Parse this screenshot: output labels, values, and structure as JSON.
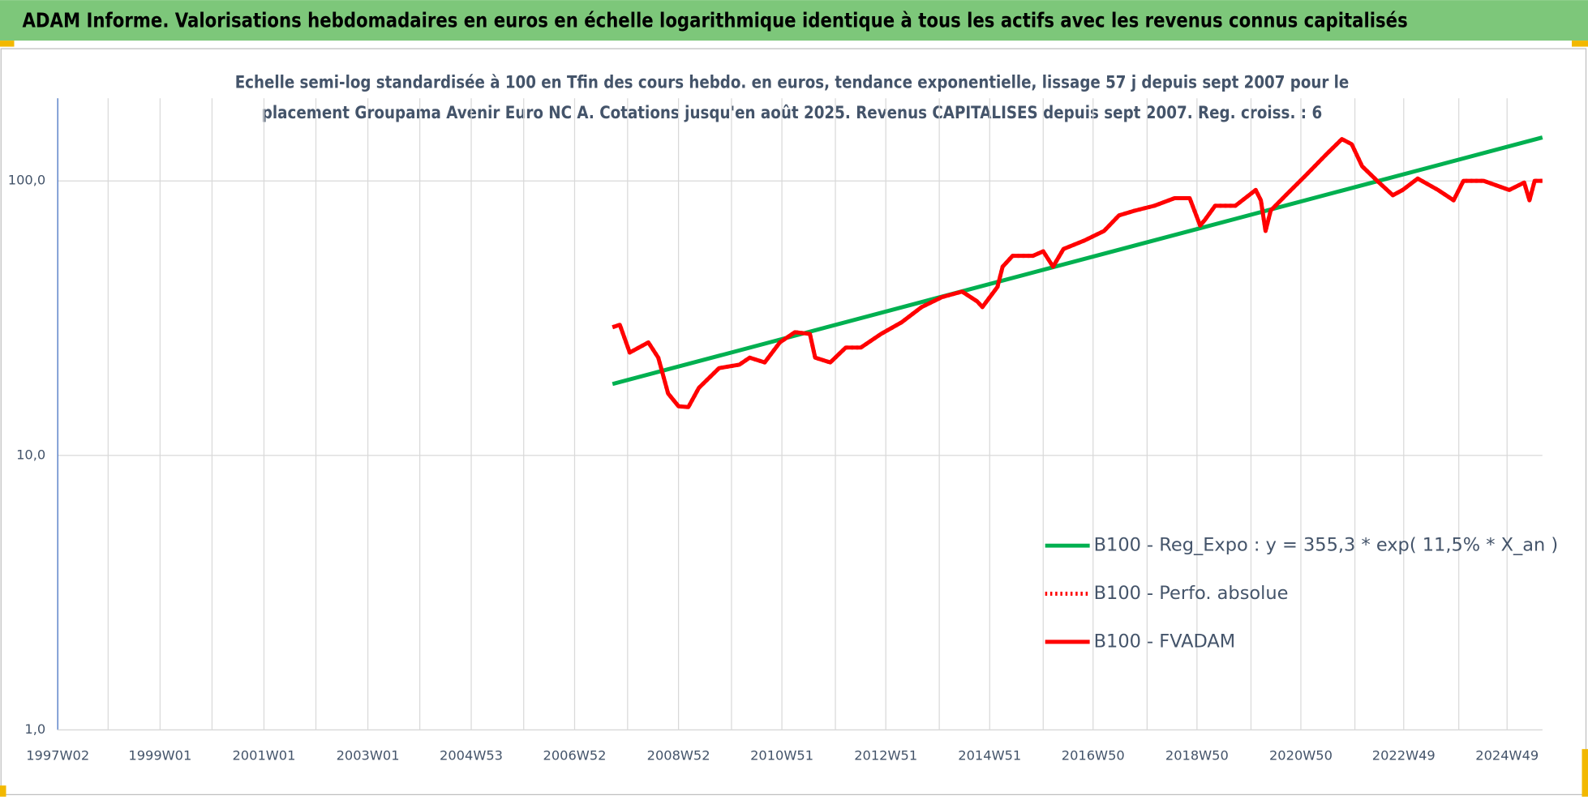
{
  "header": "ADAM Informe. Valorisations hebdomadaires en euros en échelle logarithmique identique à tous les actifs avec les revenus connus capitalisés",
  "chart_data": {
    "type": "line",
    "subtitle": [
      "Echelle semi-log standardisée à 100 en Tfin des cours hebdo. en euros, tendance exponentielle, lissage 57 j depuis sept 2007 pour le",
      "placement Groupama Avenir Euro NC A. Cotations jusqu'en août 2025. Revenus CAPITALISES depuis sept 2007. Reg. croiss. : 6"
    ],
    "log_y": true,
    "grid": true,
    "legend": "right",
    "ylim": [
      1,
      200
    ],
    "yticks": [
      {
        "value": 1,
        "label": "1,0"
      },
      {
        "value": 10,
        "label": "10,0"
      },
      {
        "value": 100,
        "label": "100,0"
      }
    ],
    "xlim": [
      1997.03,
      2025.61
    ],
    "xticks": [
      {
        "value": 1997.03,
        "label": "1997W02"
      },
      {
        "value": 1999.0,
        "label": "1999W01"
      },
      {
        "value": 2001.0,
        "label": "2001W01"
      },
      {
        "value": 2003.0,
        "label": "2003W01"
      },
      {
        "value": 2004.99,
        "label": "2004W53"
      },
      {
        "value": 2006.98,
        "label": "2006W52"
      },
      {
        "value": 2008.98,
        "label": "2008W52"
      },
      {
        "value": 2010.97,
        "label": "2010W51"
      },
      {
        "value": 2012.97,
        "label": "2012W51"
      },
      {
        "value": 2014.97,
        "label": "2014W51"
      },
      {
        "value": 2016.96,
        "label": "2016W50"
      },
      {
        "value": 2018.96,
        "label": "2018W50"
      },
      {
        "value": 2020.96,
        "label": "2020W50"
      },
      {
        "value": 2022.94,
        "label": "2022W49"
      },
      {
        "value": 2024.93,
        "label": "2024W49"
      }
    ],
    "x_minor_ticks": [
      1998,
      2000,
      2002,
      2004,
      2006,
      2008,
      2010,
      2012,
      2014,
      2016,
      2018,
      2020,
      2022,
      2024
    ],
    "series": [
      {
        "name": "B100 - Reg_Expo : y = 355,3 * exp( 11,5% *  X_an )",
        "color": "#00b050",
        "dash": "solid",
        "x": [
          2007.71,
          2025.61
        ],
        "values": [
          18.2,
          144
        ]
      },
      {
        "name": "B100 - Perfo. absolue",
        "color": "#ff0000",
        "dash": "dotted",
        "x": [
          2007.71,
          2007.85,
          2008.04,
          2008.4,
          2008.59,
          2008.78,
          2008.98,
          2009.17,
          2009.37,
          2009.76,
          2010.15,
          2010.35,
          2010.64,
          2010.93,
          2011.22,
          2011.51,
          2011.61,
          2011.9,
          2012.2,
          2012.49,
          2012.88,
          2013.27,
          2013.66,
          2014.05,
          2014.44,
          2014.73,
          2014.83,
          2015.12,
          2015.22,
          2015.41,
          2015.8,
          2016.0,
          2016.19,
          2016.39,
          2016.78,
          2017.17,
          2017.46,
          2017.75,
          2018.14,
          2018.53,
          2018.82,
          2019.02,
          2019.11,
          2019.31,
          2019.7,
          2020.09,
          2020.19,
          2020.28,
          2020.38,
          2020.67,
          2021.06,
          2021.45,
          2021.75,
          2021.94,
          2022.14,
          2022.43,
          2022.73,
          2022.92,
          2023.21,
          2023.6,
          2023.9,
          2024.09,
          2024.48,
          2024.97,
          2025.26,
          2025.36,
          2025.46,
          2025.61
        ],
        "values": [
          29.3,
          29.9,
          23.7,
          25.8,
          22.7,
          16.8,
          15.1,
          15.0,
          17.6,
          20.8,
          21.4,
          22.7,
          21.8,
          25.8,
          28.1,
          27.7,
          22.7,
          21.8,
          24.7,
          24.7,
          27.7,
          30.5,
          34.7,
          37.7,
          39.5,
          36.4,
          34.7,
          41.1,
          48.7,
          53.3,
          53.3,
          55.4,
          48.7,
          56.5,
          60.5,
          65.7,
          74.9,
          77.8,
          81.2,
          86.5,
          86.5,
          68.8,
          72.0,
          81.2,
          81.2,
          92.7,
          85,
          65.7,
          78,
          88.7,
          105,
          125,
          142,
          136,
          113,
          100,
          88.7,
          92.7,
          102,
          92.7,
          85,
          100,
          100,
          92.7,
          98.6,
          85,
          100,
          100
        ]
      },
      {
        "name": "B100 - FVADAM",
        "color": "#ff0000",
        "dash": "solid",
        "x": [
          2007.71,
          2007.85,
          2008.04,
          2008.4,
          2008.59,
          2008.78,
          2008.98,
          2009.17,
          2009.37,
          2009.76,
          2010.15,
          2010.35,
          2010.64,
          2010.93,
          2011.22,
          2011.51,
          2011.61,
          2011.9,
          2012.2,
          2012.49,
          2012.88,
          2013.27,
          2013.66,
          2014.05,
          2014.44,
          2014.73,
          2014.83,
          2015.12,
          2015.22,
          2015.41,
          2015.8,
          2016.0,
          2016.19,
          2016.39,
          2016.78,
          2017.17,
          2017.46,
          2017.75,
          2018.14,
          2018.53,
          2018.82,
          2019.02,
          2019.11,
          2019.31,
          2019.7,
          2020.09,
          2020.19,
          2020.28,
          2020.38,
          2020.67,
          2021.06,
          2021.45,
          2021.75,
          2021.94,
          2022.14,
          2022.43,
          2022.73,
          2022.92,
          2023.21,
          2023.6,
          2023.9,
          2024.09,
          2024.48,
          2024.97,
          2025.26,
          2025.36,
          2025.46,
          2025.61
        ],
        "values": [
          29.3,
          29.9,
          23.7,
          25.8,
          22.7,
          16.8,
          15.1,
          15.0,
          17.6,
          20.8,
          21.4,
          22.7,
          21.8,
          25.8,
          28.1,
          27.7,
          22.7,
          21.8,
          24.7,
          24.7,
          27.7,
          30.5,
          34.7,
          37.7,
          39.5,
          36.4,
          34.7,
          41.1,
          48.7,
          53.3,
          53.3,
          55.4,
          48.7,
          56.5,
          60.5,
          65.7,
          74.9,
          77.8,
          81.2,
          86.5,
          86.5,
          68.8,
          72.0,
          81.2,
          81.2,
          92.7,
          85,
          65.7,
          78,
          88.7,
          105,
          125,
          142,
          136,
          113,
          100,
          88.7,
          92.7,
          102,
          92.7,
          85,
          100,
          100,
          92.7,
          98.6,
          85,
          100,
          100
        ]
      }
    ]
  }
}
